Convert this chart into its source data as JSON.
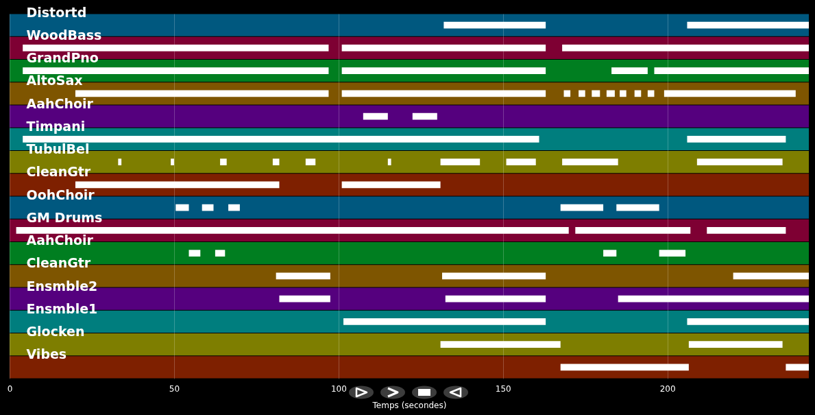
{
  "chart_data": {
    "type": "bar",
    "orientation": "horizontal",
    "xlabel": "Temps (secondes)",
    "categories": [
      "Distortd",
      "WoodBass",
      "GrandPno",
      "AltoSax",
      "AahChoir",
      "Timpani",
      "TubulBel",
      "CleanGtr",
      "OohChoir",
      "GM Drums",
      "AahChoir",
      "CleanGtr",
      "Ensmble2",
      "Ensmble1",
      "Glocken",
      "Vibes"
    ],
    "xlim": [
      0,
      243
    ],
    "xticks": [
      0,
      50,
      100,
      150,
      200
    ],
    "grid": "x",
    "series": [
      {
        "colors": [
          "#00587f",
          "#7e0033",
          "#007e20",
          "#7e5500",
          "#55007e",
          "#007e7e",
          "#7e7e00",
          "#7e2000",
          "#00587f",
          "#7e0033",
          "#007e20",
          "#7e5500",
          "#55007e",
          "#007e7e",
          "#7e7e00",
          "#7e2000"
        ],
        "values": [
          243,
          243,
          243,
          243,
          243,
          243,
          243,
          243,
          243,
          243,
          243,
          243,
          243,
          243,
          243,
          243
        ]
      },
      {
        "color": "#ffffff",
        "base": [
          132,
          4,
          4,
          20,
          107.5,
          4,
          33,
          20,
          50.5,
          2,
          54.5,
          81,
          82,
          101.5,
          131,
          167.5
        ],
        "values": [
          31,
          93,
          93,
          77,
          7.5,
          157,
          1,
          62,
          4,
          168,
          3.5,
          16.5,
          15.5,
          61.5,
          36.5,
          39
        ]
      },
      {
        "color": "#ffffff",
        "base": [
          206,
          101,
          101,
          101,
          122.5,
          206,
          49,
          101,
          58.5,
          172,
          62.5,
          131.5,
          132.5,
          206,
          206.5,
          236
        ],
        "values": [
          37,
          62,
          62,
          62,
          7.5,
          30,
          1,
          30,
          3.5,
          35,
          3,
          31.5,
          30.5,
          37,
          28.5,
          7
        ]
      },
      {
        "color": "#ffffff",
        "base": [
          null,
          168,
          183,
          168.5,
          null,
          null,
          64,
          null,
          66.5,
          212,
          180.5,
          220,
          185,
          null,
          null,
          null
        ],
        "values": [
          null,
          75,
          11,
          2,
          null,
          null,
          2,
          null,
          3.5,
          24,
          4,
          23,
          58,
          null,
          null,
          null
        ]
      },
      {
        "color": "#ffffff",
        "base": [
          null,
          null,
          196,
          173,
          null,
          null,
          80,
          null,
          167.5,
          null,
          197.5,
          null,
          null,
          null,
          null,
          null
        ],
        "values": [
          null,
          null,
          47,
          2,
          null,
          null,
          2,
          null,
          13,
          null,
          8,
          null,
          null,
          null,
          null,
          null
        ]
      },
      {
        "color": "#ffffff",
        "base": [
          null,
          null,
          null,
          177,
          null,
          null,
          90,
          null,
          184.5,
          null,
          null,
          null,
          null,
          null,
          null,
          null
        ],
        "values": [
          null,
          null,
          null,
          2.5,
          null,
          null,
          3,
          null,
          13,
          null,
          null,
          null,
          null,
          null,
          null,
          null
        ]
      },
      {
        "color": "#ffffff",
        "base": [
          null,
          null,
          null,
          181.5,
          null,
          null,
          115,
          null,
          null,
          null,
          null,
          null,
          null,
          null,
          null,
          null
        ],
        "values": [
          null,
          null,
          null,
          2.5,
          null,
          null,
          1,
          null,
          null,
          null,
          null,
          null,
          null,
          null,
          null,
          null
        ]
      },
      {
        "color": "#ffffff",
        "base": [
          null,
          null,
          null,
          185.5,
          null,
          null,
          131,
          null,
          null,
          null,
          null,
          null,
          null,
          null,
          null,
          null
        ],
        "values": [
          null,
          null,
          null,
          2,
          null,
          null,
          12,
          null,
          null,
          null,
          null,
          null,
          null,
          null,
          null,
          null
        ]
      },
      {
        "color": "#ffffff",
        "base": [
          null,
          null,
          null,
          190,
          null,
          null,
          151,
          null,
          null,
          null,
          null,
          null,
          null,
          null,
          null,
          null
        ],
        "values": [
          null,
          null,
          null,
          2,
          null,
          null,
          9,
          null,
          null,
          null,
          null,
          null,
          null,
          null,
          null,
          null
        ]
      },
      {
        "color": "#ffffff",
        "base": [
          null,
          null,
          null,
          194,
          null,
          null,
          168,
          null,
          null,
          null,
          null,
          null,
          null,
          null,
          null,
          null
        ],
        "values": [
          null,
          null,
          null,
          2,
          null,
          null,
          17,
          null,
          null,
          null,
          null,
          null,
          null,
          null,
          null,
          null
        ]
      },
      {
        "color": "#ffffff",
        "base": [
          null,
          null,
          null,
          199,
          null,
          null,
          209,
          null,
          null,
          null,
          null,
          null,
          null,
          null,
          null,
          null
        ],
        "values": [
          null,
          null,
          null,
          40,
          null,
          null,
          26,
          null,
          null,
          null,
          null,
          null,
          null,
          null,
          null,
          null
        ]
      }
    ]
  }
}
